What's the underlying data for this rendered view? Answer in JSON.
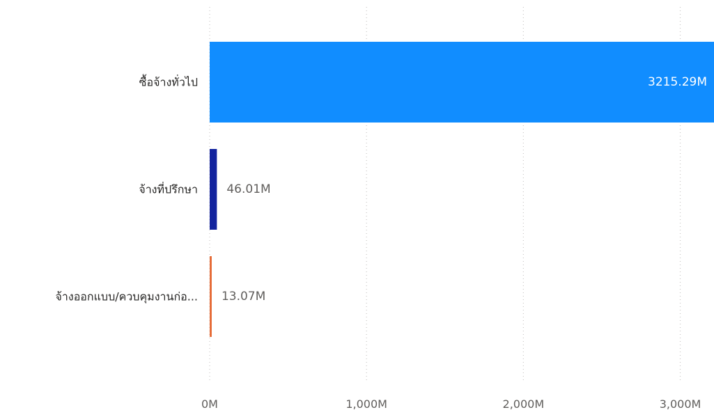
{
  "chart_data": {
    "type": "bar",
    "orientation": "horizontal",
    "categories": [
      "ซื้อจ้างทั่วไป",
      "จ้างที่ปรึกษา",
      "จ้างออกแบบ/ควบคุมงานก่อ..."
    ],
    "values": [
      3215.29,
      46.01,
      13.07
    ],
    "value_labels": [
      "3215.29M",
      "46.01M",
      "13.07M"
    ],
    "colors": [
      "#118DFF",
      "#12239E",
      "#E66C37"
    ],
    "x_ticks": [
      0,
      1000,
      2000,
      3000
    ],
    "x_tick_labels": [
      "0M",
      "1,000M",
      "2,000M",
      "3,000M"
    ],
    "xlim": [
      0,
      3215.29
    ],
    "grid": true,
    "legend": "none"
  }
}
